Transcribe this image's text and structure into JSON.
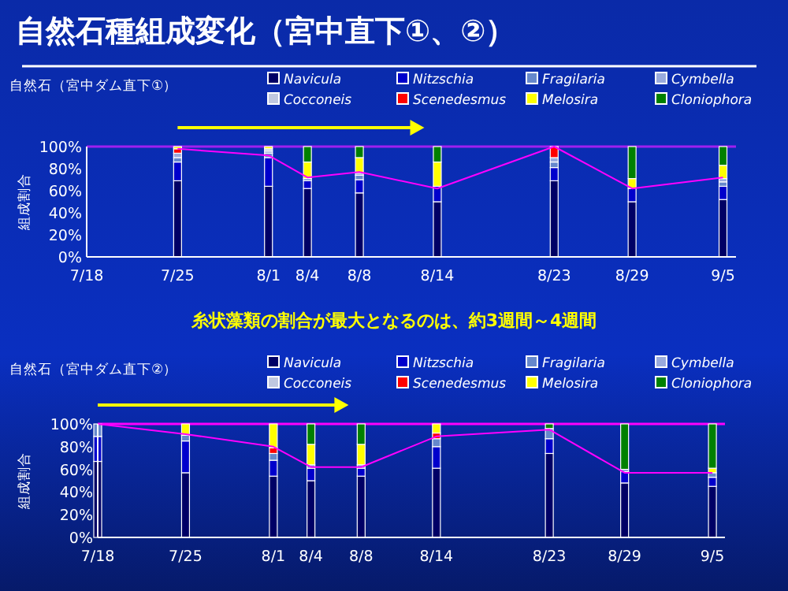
{
  "chart_data": [
    {
      "type": "bar",
      "stacked": true,
      "title": "自然石種組成変化（宮中直下①、②）",
      "subtitle": "自然石（宮中ダム直下①）",
      "ylabel": "組成割合",
      "annotations": [
        "糸状藻類の割合が最大となるのは、約3週間～4週間"
      ],
      "legend": "top",
      "marker": "none",
      "x": [
        "--07-25",
        "--08-01",
        "--08-04",
        "--08-08",
        "--08-14",
        "--08-23",
        "--08-29",
        "--09-05"
      ],
      "xlim": [
        "--07-18",
        "--09-06"
      ],
      "xticks": [
        {
          "value": "--07-18",
          "label": "7/18"
        },
        {
          "value": "--07-25",
          "label": "7/25"
        },
        {
          "value": "--08-01",
          "label": "8/1"
        },
        {
          "value": "--08-04",
          "label": "8/4"
        },
        {
          "value": "--08-08",
          "label": "8/8"
        },
        {
          "value": "--08-14",
          "label": "8/14"
        },
        {
          "value": "--08-23",
          "label": "8/23"
        },
        {
          "value": "--08-29",
          "label": "8/29"
        },
        {
          "value": "--09-05",
          "label": "9/5"
        }
      ],
      "ylim": [
        0,
        100
      ],
      "yticks": [
        {
          "value": 0,
          "label": "0%"
        },
        {
          "value": 20,
          "label": "20%"
        },
        {
          "value": 40,
          "label": "40%"
        },
        {
          "value": 60,
          "label": "60%"
        },
        {
          "value": 80,
          "label": "80%"
        },
        {
          "value": 100,
          "label": "100%"
        }
      ],
      "ref_lines": [
        {
          "axis": "y",
          "value": 100,
          "color": "#a020f0"
        }
      ],
      "series": [
        {
          "name": "Navicula",
          "color": "#000066",
          "values": [
            69,
            64,
            62,
            58,
            50,
            69,
            50,
            52
          ]
        },
        {
          "name": "Nitzschia",
          "color": "#0000cc",
          "values": [
            17,
            26,
            7,
            12,
            14,
            12,
            12,
            12
          ]
        },
        {
          "name": "Fragilaria",
          "color": "#6688cc",
          "values": [
            4,
            4,
            2,
            4,
            0,
            5,
            0,
            4
          ]
        },
        {
          "name": "Cymbella",
          "color": "#99aadd",
          "values": [
            4,
            2,
            0,
            2,
            0,
            4,
            0,
            3
          ]
        },
        {
          "name": "Cocconeis",
          "color": "#c0c8e0",
          "values": [
            0,
            2,
            0,
            0,
            0,
            0,
            0,
            0
          ]
        },
        {
          "name": "Scenedesmus",
          "color": "#ff0000",
          "values": [
            4,
            0,
            0,
            0,
            0,
            10,
            0,
            0
          ]
        },
        {
          "name": "Melosira",
          "color": "#ffff00",
          "values": [
            2,
            2,
            15,
            14,
            22,
            0,
            9,
            12
          ]
        },
        {
          "name": "Cloniophora",
          "color": "#008000",
          "values": [
            0,
            0,
            14,
            10,
            14,
            0,
            29,
            17
          ]
        },
        {
          "type": "line",
          "color": "#ff00ff",
          "values": [
            98,
            92,
            72,
            77,
            62,
            100,
            62,
            72
          ]
        }
      ]
    },
    {
      "type": "bar",
      "stacked": true,
      "title": "自然石（宮中ダム直下②）",
      "ylabel": "組成割合",
      "legend": "top",
      "marker": "none",
      "x": [
        "--07-18",
        "--07-25",
        "--08-01",
        "--08-04",
        "--08-08",
        "--08-14",
        "--08-23",
        "--08-29",
        "--09-05"
      ],
      "xlim": [
        "--07-18",
        "--09-06"
      ],
      "xticks": [
        {
          "value": "--07-18",
          "label": "7/18"
        },
        {
          "value": "--07-25",
          "label": "7/25"
        },
        {
          "value": "--08-01",
          "label": "8/1"
        },
        {
          "value": "--08-04",
          "label": "8/4"
        },
        {
          "value": "--08-08",
          "label": "8/8"
        },
        {
          "value": "--08-14",
          "label": "8/14"
        },
        {
          "value": "--08-23",
          "label": "8/23"
        },
        {
          "value": "--08-29",
          "label": "8/29"
        },
        {
          "value": "--09-05",
          "label": "9/5"
        }
      ],
      "ylim": [
        0,
        100
      ],
      "yticks": [
        {
          "value": 0,
          "label": "0%"
        },
        {
          "value": 20,
          "label": "20%"
        },
        {
          "value": 40,
          "label": "40%"
        },
        {
          "value": 60,
          "label": "60%"
        },
        {
          "value": 80,
          "label": "80%"
        },
        {
          "value": 100,
          "label": "100%"
        }
      ],
      "ref_lines": [
        {
          "axis": "y",
          "value": 100,
          "color": "#ff00ff"
        }
      ],
      "series": [
        {
          "name": "Navicula",
          "color": "#000066",
          "values": [
            67,
            57,
            54,
            50,
            54,
            61,
            74,
            48,
            45
          ]
        },
        {
          "name": "Nitzschia",
          "color": "#0000cc",
          "values": [
            22,
            28,
            14,
            11,
            7,
            19,
            13,
            10,
            8
          ]
        },
        {
          "name": "Fragilaria",
          "color": "#6688cc",
          "values": [
            11,
            5,
            6,
            3,
            3,
            7,
            9,
            2,
            4
          ]
        },
        {
          "name": "Cymbella",
          "color": "#99aadd",
          "values": [
            0,
            0,
            0,
            0,
            0,
            0,
            0,
            0,
            0
          ]
        },
        {
          "name": "Cocconeis",
          "color": "#c0c8e0",
          "values": [
            0,
            0,
            0,
            0,
            0,
            0,
            0,
            0,
            0
          ]
        },
        {
          "name": "Scenedesmus",
          "color": "#ff0000",
          "values": [
            0,
            0,
            5,
            0,
            0,
            5,
            0,
            0,
            0
          ]
        },
        {
          "name": "Melosira",
          "color": "#ffff00",
          "values": [
            0,
            10,
            21,
            18,
            18,
            8,
            0,
            0,
            4
          ]
        },
        {
          "name": "Cloniophora",
          "color": "#008000",
          "values": [
            0,
            0,
            0,
            18,
            18,
            0,
            4,
            40,
            39
          ]
        },
        {
          "type": "line",
          "color": "#ff00ff",
          "values": [
            100,
            91,
            80,
            62,
            62,
            89,
            95,
            57,
            57
          ]
        }
      ]
    }
  ]
}
